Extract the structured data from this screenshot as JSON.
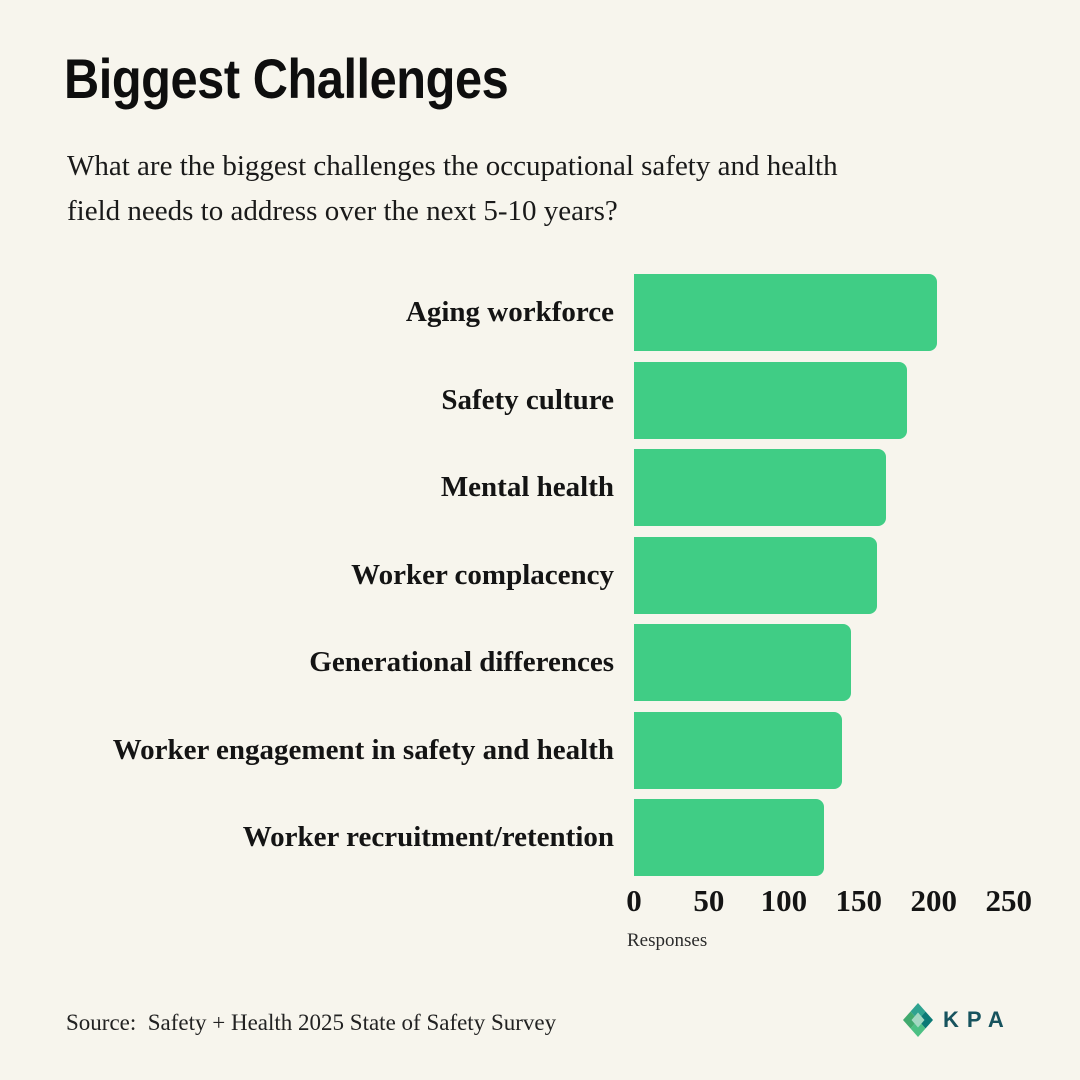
{
  "chart_data": {
    "type": "bar",
    "orientation": "horizontal",
    "title": "Biggest Challenges",
    "subtitle": "What are the biggest challenges the occupational safety and health field needs to address over the next 5-10 years?",
    "subtitle_lines": [
      "What are the biggest challenges the occupational safety and health",
      "field needs to address over the next 5-10 years?"
    ],
    "categories": [
      "Aging workforce",
      "Safety culture",
      "Mental health",
      "Worker complacency",
      "Generational differences",
      "Worker engagement in safety and health",
      "Worker recruitment/retention"
    ],
    "values": [
      202,
      182,
      168,
      162,
      145,
      139,
      127
    ],
    "xlabel": "Responses",
    "xlim": [
      0,
      250
    ],
    "xticks": [
      0,
      50,
      100,
      150,
      200,
      250
    ],
    "bar_color": "#40cd85",
    "grid": false,
    "legend_position": "none"
  },
  "footer": {
    "source": "Source:  Safety + Health 2025 State of Safety Survey",
    "brand": "KPA"
  },
  "colors": {
    "background": "#f7f5ed",
    "bar": "#40cd85",
    "text": "#141414",
    "brand_teal": "#17535e",
    "diamond_left": "#41aa6e",
    "diamond_top": "#2fa390",
    "diamond_right": "#0b7a76",
    "diamond_bottom": "#4cc084",
    "diamond_center": "#a3d8c2"
  }
}
